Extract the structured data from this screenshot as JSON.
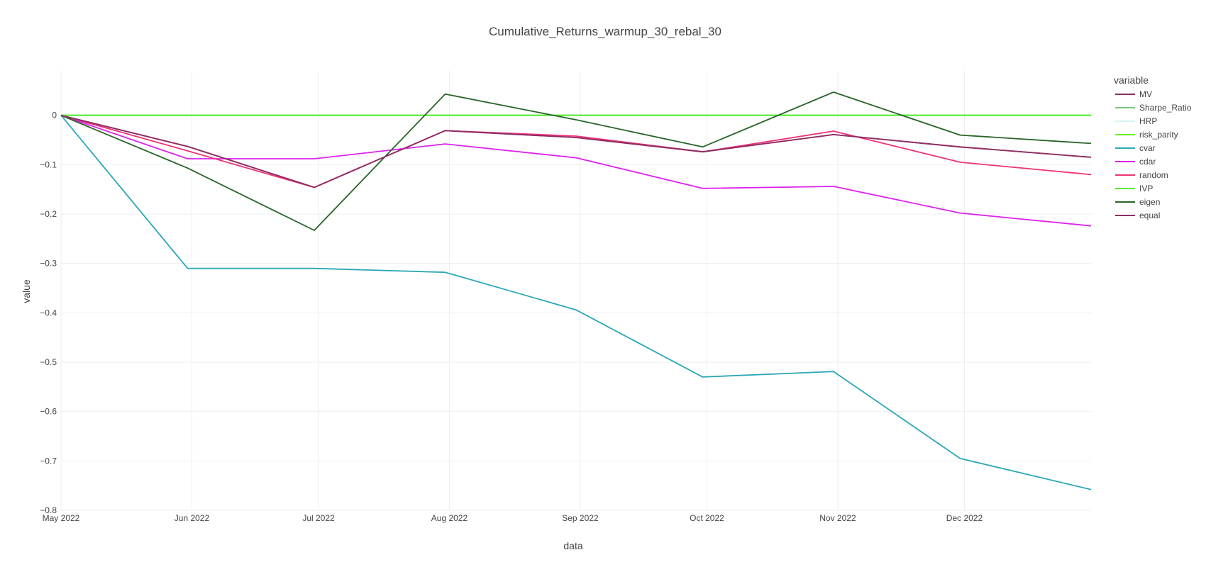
{
  "chart_data": {
    "type": "line",
    "title": "Cumulative_Returns_warmup_30_rebal_30",
    "xlabel": "data",
    "ylabel": "value",
    "legend_title": "variable",
    "legend_position": "right",
    "grid": true,
    "x_range": [
      "2022-05-01",
      "2022-12-31"
    ],
    "ylim": [
      -0.8,
      0.09
    ],
    "x_ticks": [
      {
        "date": "2022-05-01",
        "label": "May 2022"
      },
      {
        "date": "2022-06-01",
        "label": "Jun 2022"
      },
      {
        "date": "2022-07-01",
        "label": "Jul 2022"
      },
      {
        "date": "2022-08-01",
        "label": "Aug 2022"
      },
      {
        "date": "2022-09-01",
        "label": "Sep 2022"
      },
      {
        "date": "2022-10-01",
        "label": "Oct 2022"
      },
      {
        "date": "2022-11-01",
        "label": "Nov 2022"
      },
      {
        "date": "2022-12-01",
        "label": "Dec 2022"
      }
    ],
    "y_ticks": [
      {
        "value": 0,
        "label": "0"
      },
      {
        "value": -0.1,
        "label": "−0.1"
      },
      {
        "value": -0.2,
        "label": "−0.2"
      },
      {
        "value": -0.3,
        "label": "−0.3"
      },
      {
        "value": -0.4,
        "label": "−0.4"
      },
      {
        "value": -0.5,
        "label": "−0.5"
      },
      {
        "value": -0.6,
        "label": "−0.6"
      },
      {
        "value": -0.7,
        "label": "−0.7"
      },
      {
        "value": -0.8,
        "label": "−0.8"
      }
    ],
    "x": [
      "2022-05-01",
      "2022-05-31",
      "2022-06-30",
      "2022-07-31",
      "2022-08-31",
      "2022-09-30",
      "2022-10-31",
      "2022-11-30",
      "2022-12-31"
    ],
    "series": [
      {
        "name": "MV",
        "color": "#8e2d64",
        "values": [
          0,
          -0.063,
          -0.146,
          -0.031,
          -0.045,
          -0.074,
          -0.039,
          -0.064,
          -0.085
        ]
      },
      {
        "name": "Sharpe_Ratio",
        "color": "#7fc47f",
        "values": [
          0,
          0,
          0,
          0,
          0,
          0,
          0,
          0,
          0
        ]
      },
      {
        "name": "HRP",
        "color": "#d2f5ef",
        "values": [
          0,
          0,
          0,
          0,
          0,
          0,
          0,
          0,
          0
        ]
      },
      {
        "name": "risk_parity",
        "color": "#66ee22",
        "values": [
          0,
          0,
          0,
          0,
          0,
          0,
          0,
          0,
          0
        ]
      },
      {
        "name": "cvar",
        "color": "#2aa7b8",
        "values": [
          0,
          -0.31,
          -0.31,
          -0.318,
          -0.394,
          -0.53,
          -0.519,
          -0.695,
          -0.758
        ]
      },
      {
        "name": "cdar",
        "color": "#dd22ee",
        "values": [
          0,
          -0.088,
          -0.088,
          -0.058,
          -0.086,
          -0.148,
          -0.144,
          -0.198,
          -0.224
        ]
      },
      {
        "name": "random",
        "color": "#ee3377",
        "values": [
          0,
          -0.072,
          -0.146,
          -0.031,
          -0.042,
          -0.074,
          -0.032,
          -0.095,
          -0.12
        ]
      },
      {
        "name": "IVP",
        "color": "#55ee33",
        "values": [
          0,
          0,
          0,
          0,
          0,
          0,
          0,
          0,
          0
        ]
      },
      {
        "name": "eigen",
        "color": "#286428",
        "values": [
          0,
          -0.107,
          -0.233,
          0.043,
          -0.009,
          -0.064,
          0.047,
          -0.04,
          -0.057
        ]
      },
      {
        "name": "equal",
        "color": "#8e2d64",
        "values": [
          0,
          -0.063,
          -0.146,
          -0.031,
          -0.045,
          -0.074,
          -0.039,
          -0.064,
          -0.085
        ]
      }
    ]
  }
}
